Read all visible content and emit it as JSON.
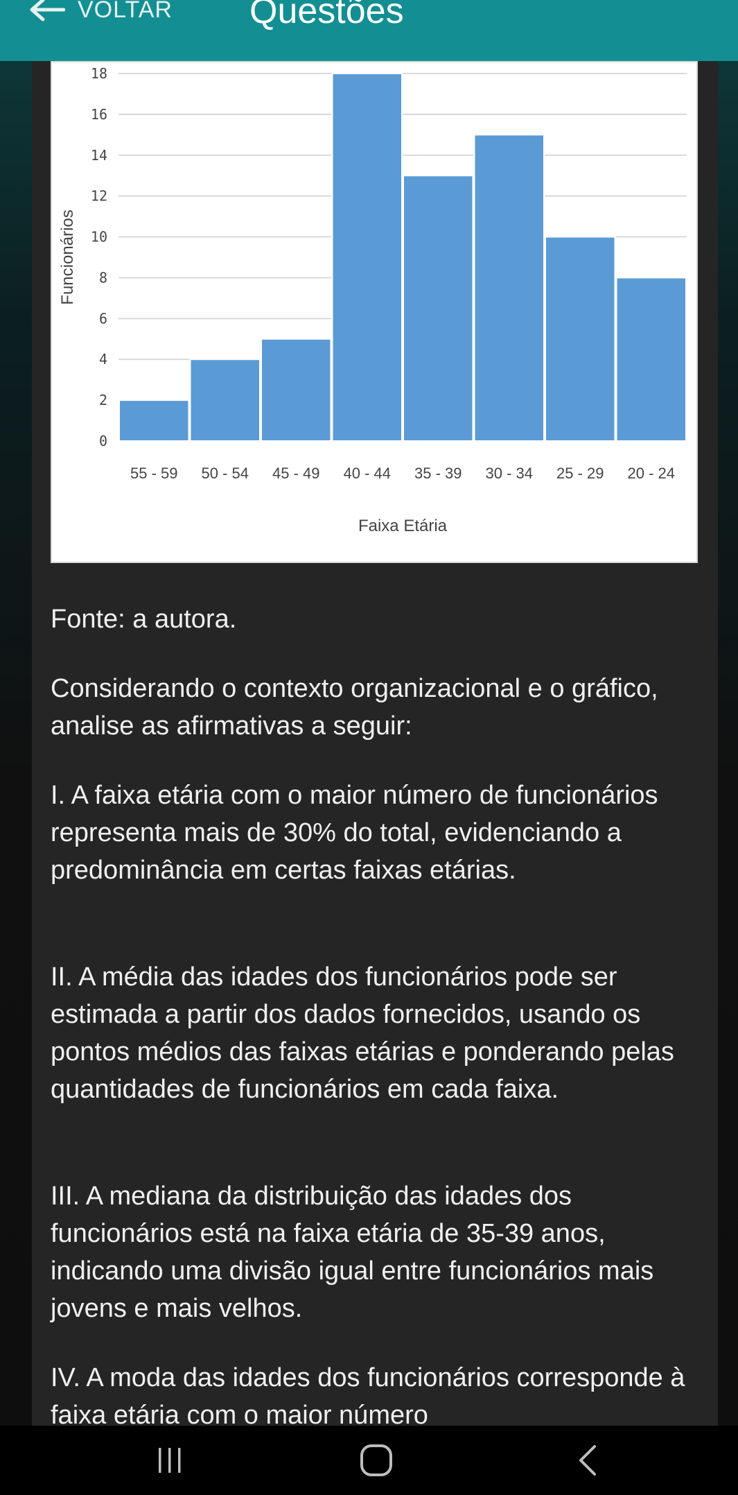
{
  "header": {
    "back_label": "VOLTAR",
    "title": "Questões"
  },
  "chart_data": {
    "type": "bar",
    "categories": [
      "55 - 59",
      "50 - 54",
      "45 - 49",
      "40 - 44",
      "35 - 39",
      "30 - 34",
      "25 - 29",
      "20 - 24"
    ],
    "values": [
      2,
      4,
      5,
      18,
      13,
      15,
      10,
      8
    ],
    "xlabel": "Faixa Etária",
    "ylabel": "Funcionários",
    "ylim": [
      0,
      18
    ],
    "yticks": [
      0,
      2,
      4,
      6,
      8,
      10,
      12,
      14,
      16,
      18
    ],
    "grid": true,
    "bar_color": "#5b9bd5"
  },
  "content": {
    "source": "Fonte: a autora.",
    "intro": "Considerando o contexto organizacional e o gráfico, analise as afirmativas a seguir:",
    "statements": [
      "I. A faixa etária com o maior número de funcionários representa mais de 30% do total, evidenciando a predominância em certas faixas etárias.",
      "II. A média das idades dos funcionários pode ser estimada a partir dos dados fornecidos, usando os pontos médios das faixas etárias e ponderando pelas quantidades de funcionários em cada faixa.",
      "III. A mediana da distribuição das idades dos funcionários está na faixa etária de 35-39 anos, indicando uma divisão igual entre funcionários mais jovens e mais velhos.",
      "IV. A moda das idades dos funcionários corresponde à faixa etária com o maior número"
    ]
  },
  "icons": {
    "back": "arrow-left-icon",
    "recent": "recent-apps-icon",
    "home": "home-icon",
    "nav_back": "chevron-left-icon"
  }
}
